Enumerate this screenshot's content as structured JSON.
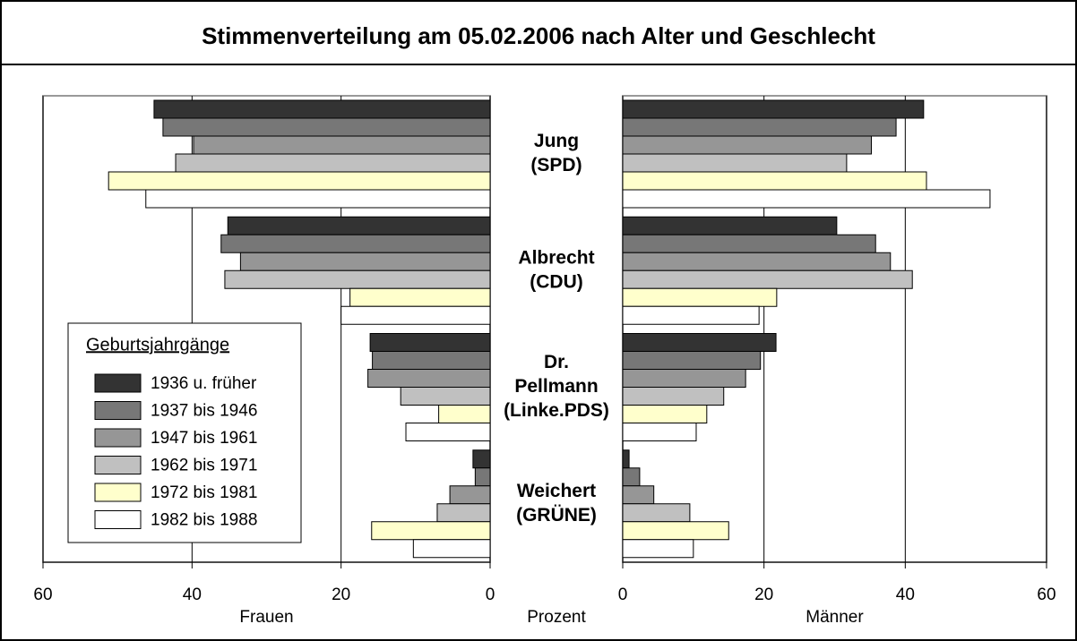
{
  "chart_data": {
    "type": "bar",
    "title": "Stimmenverteilung am 05.02.2006 nach Alter und Geschlecht",
    "legend_title": "Geburtsjahrgänge",
    "center_label": "Prozent",
    "categories": [
      [
        "Jung",
        "(SPD)"
      ],
      [
        "Albrecht",
        "(CDU)"
      ],
      [
        "Dr.",
        "Pellmann",
        "(Linke.PDS)"
      ],
      [
        "Weichert",
        "(GRÜNE)"
      ]
    ],
    "series": [
      {
        "name": "1936 u. früher",
        "color": "#333333"
      },
      {
        "name": "1937 bis 1946",
        "color": "#777777"
      },
      {
        "name": "1947 bis 1961",
        "color": "#969696"
      },
      {
        "name": "1962 bis 1971",
        "color": "#c0c0c0"
      },
      {
        "name": "1972 bis 1981",
        "color": "#ffffcc"
      },
      {
        "name": "1982 bis 1988",
        "color": "#ffffff"
      }
    ],
    "panels": [
      {
        "xlabel": "Frauen",
        "xlim": [
          60,
          0
        ],
        "xticks": [
          60,
          40,
          20,
          0
        ],
        "grid": true,
        "values": [
          [
            45.1,
            35.2,
            16.1,
            2.3
          ],
          [
            43.9,
            36.1,
            15.8,
            2.0
          ],
          [
            39.8,
            33.5,
            16.4,
            5.4
          ],
          [
            42.2,
            35.6,
            12.0,
            7.1
          ],
          [
            51.2,
            18.8,
            6.9,
            15.9
          ],
          [
            46.2,
            20.0,
            11.3,
            10.3
          ]
        ]
      },
      {
        "xlabel": "Männer",
        "xlim": [
          0,
          60
        ],
        "xticks": [
          0,
          20,
          40,
          60
        ],
        "grid": true,
        "values": [
          [
            42.6,
            30.3,
            21.7,
            0.9
          ],
          [
            38.7,
            35.8,
            19.5,
            2.4
          ],
          [
            35.2,
            37.9,
            17.4,
            4.4
          ],
          [
            31.7,
            41.0,
            14.3,
            9.5
          ],
          [
            43.0,
            21.8,
            11.9,
            15.0
          ],
          [
            52.0,
            19.3,
            10.4,
            10.0
          ]
        ]
      }
    ]
  }
}
